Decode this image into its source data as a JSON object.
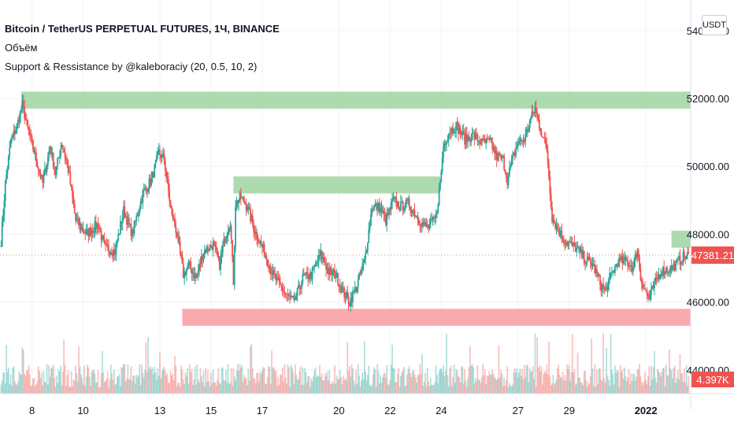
{
  "header": {
    "title": "Bitcoin / TetherUS PERPETUAL FUTURES, 1Ч, BINANCE",
    "indicator_volume": "Объём",
    "indicator_sr": "Support & Ressistance by @kaleboraciy (20, 0.5, 10, 2)"
  },
  "currency_button": "USDT",
  "colors": {
    "up": "#26a69a",
    "down": "#ef5350",
    "resistance_zone": "#a5d6a7",
    "support_zone": "#faa1a4",
    "price_label": "#ef5350",
    "grid": "#f0f3fa",
    "text": "#131722"
  },
  "chart_data": {
    "type": "candlestick",
    "title": "Bitcoin / TetherUS PERPETUAL FUTURES, 1Ч, BINANCE",
    "y_axis": {
      "ticks": [
        54000,
        52000,
        50000,
        48000,
        46000,
        44000
      ],
      "tick_labels": [
        "54000.00",
        "52000.00",
        "50000.00",
        "48000.00",
        "46000.00",
        "44000.00"
      ],
      "range": [
        43300,
        54900
      ]
    },
    "x_axis": {
      "tick_labels": [
        "8",
        "10",
        "13",
        "15",
        "17",
        "20",
        "22",
        "24",
        "27",
        "29",
        "2022"
      ],
      "tick_dates": [
        "2021-12-08",
        "2021-12-10",
        "2021-12-13",
        "2021-12-15",
        "2021-12-17",
        "2021-12-20",
        "2021-12-22",
        "2021-12-24",
        "2021-12-27",
        "2021-12-29",
        "2022-01-01"
      ],
      "range": [
        "2021-12-06T18:00",
        "2022-01-02T18:00"
      ]
    },
    "price_path": [
      [
        "2021-12-06T19:00",
        47800
      ],
      [
        "2021-12-06T23:00",
        49500
      ],
      [
        "2021-12-07T04:00",
        50700
      ],
      [
        "2021-12-07T10:00",
        51200
      ],
      [
        "2021-12-07T15:00",
        51800
      ],
      [
        "2021-12-07T20:00",
        51100
      ],
      [
        "2021-12-08T03:00",
        50300
      ],
      [
        "2021-12-08T10:00",
        49500
      ],
      [
        "2021-12-08T17:00",
        50600
      ],
      [
        "2021-12-08T22:00",
        49800
      ],
      [
        "2021-12-09T04:00",
        50700
      ],
      [
        "2021-12-09T10:00",
        49900
      ],
      [
        "2021-12-09T17:00",
        48400
      ],
      [
        "2021-12-10T03:00",
        48000
      ],
      [
        "2021-12-10T14:00",
        48300
      ],
      [
        "2021-12-10T20:00",
        47600
      ],
      [
        "2021-12-11T06:00",
        47500
      ],
      [
        "2021-12-11T14:00",
        48700
      ],
      [
        "2021-12-11T22:00",
        48000
      ],
      [
        "2021-12-12T08:00",
        49200
      ],
      [
        "2021-12-12T16:00",
        49600
      ],
      [
        "2021-12-12T23:00",
        50400
      ],
      [
        "2021-12-13T04:00",
        50200
      ],
      [
        "2021-12-13T10:00",
        48800
      ],
      [
        "2021-12-13T16:00",
        48000
      ],
      [
        "2021-12-13T22:00",
        46800
      ],
      [
        "2021-12-14T03:00",
        47100
      ],
      [
        "2021-12-14T10:00",
        46700
      ],
      [
        "2021-12-14T17:00",
        47500
      ],
      [
        "2021-12-15T02:00",
        47700
      ],
      [
        "2021-12-15T08:00",
        47100
      ],
      [
        "2021-12-15T13:00",
        47900
      ],
      [
        "2021-12-15T18:00",
        48400
      ],
      [
        "2021-12-15T21:00",
        46600
      ],
      [
        "2021-12-15T23:00",
        48900
      ],
      [
        "2021-12-16T04:00",
        49100
      ],
      [
        "2021-12-16T10:00",
        48800
      ],
      [
        "2021-12-16T17:00",
        48100
      ],
      [
        "2021-12-17T03:00",
        47400
      ],
      [
        "2021-12-17T10:00",
        46800
      ],
      [
        "2021-12-17T16:00",
        46500
      ],
      [
        "2021-12-17T23:00",
        46200
      ],
      [
        "2021-12-18T06:00",
        46000
      ],
      [
        "2021-12-18T14:00",
        46700
      ],
      [
        "2021-12-18T22:00",
        46800
      ],
      [
        "2021-12-19T07:00",
        47400
      ],
      [
        "2021-12-19T14:00",
        46900
      ],
      [
        "2021-12-19T21:00",
        46800
      ],
      [
        "2021-12-20T04:00",
        46300
      ],
      [
        "2021-12-20T10:00",
        46000
      ],
      [
        "2021-12-20T17:00",
        46500
      ],
      [
        "2021-12-21T00:00",
        47200
      ],
      [
        "2021-12-21T07:00",
        48800
      ],
      [
        "2021-12-21T14:00",
        48800
      ],
      [
        "2021-12-21T20:00",
        48400
      ],
      [
        "2021-12-22T03:00",
        49000
      ],
      [
        "2021-12-22T10:00",
        48800
      ],
      [
        "2021-12-22T17:00",
        48900
      ],
      [
        "2021-12-23T00:00",
        48600
      ],
      [
        "2021-12-23T06:00",
        48300
      ],
      [
        "2021-12-23T12:00",
        48200
      ],
      [
        "2021-12-23T19:00",
        48500
      ],
      [
        "2021-12-23T23:00",
        49500
      ],
      [
        "2021-12-24T02:00",
        50600
      ],
      [
        "2021-12-24T07:00",
        51000
      ],
      [
        "2021-12-24T14:00",
        51200
      ],
      [
        "2021-12-24T22:00",
        50800
      ],
      [
        "2021-12-25T06:00",
        50900
      ],
      [
        "2021-12-25T14:00",
        50700
      ],
      [
        "2021-12-25T22:00",
        50700
      ],
      [
        "2021-12-26T04:00",
        50300
      ],
      [
        "2021-12-26T10:00",
        50200
      ],
      [
        "2021-12-26T14:00",
        49600
      ],
      [
        "2021-12-26T18:00",
        50100
      ],
      [
        "2021-12-27T00:00",
        50700
      ],
      [
        "2021-12-27T06:00",
        50800
      ],
      [
        "2021-12-27T12:00",
        51400
      ],
      [
        "2021-12-27T16:00",
        51700
      ],
      [
        "2021-12-27T22:00",
        51000
      ],
      [
        "2021-12-28T03:00",
        50500
      ],
      [
        "2021-12-28T08:00",
        48500
      ],
      [
        "2021-12-28T14:00",
        48100
      ],
      [
        "2021-12-28T20:00",
        47800
      ],
      [
        "2021-12-29T06:00",
        47600
      ],
      [
        "2021-12-29T14:00",
        47300
      ],
      [
        "2021-12-29T22:00",
        47100
      ],
      [
        "2021-12-30T06:00",
        46500
      ],
      [
        "2021-12-30T10:00",
        46300
      ],
      [
        "2021-12-30T14:00",
        46700
      ],
      [
        "2021-12-30T22:00",
        47200
      ],
      [
        "2021-12-31T06:00",
        47200
      ],
      [
        "2021-12-31T12:00",
        47000
      ],
      [
        "2021-12-31T16:00",
        47600
      ],
      [
        "2021-12-31T19:00",
        46700
      ],
      [
        "2022-01-01T00:00",
        46300
      ],
      [
        "2022-01-01T03:00",
        46100
      ],
      [
        "2022-01-01T08:00",
        46500
      ],
      [
        "2022-01-01T14:00",
        46900
      ],
      [
        "2022-01-02T00:00",
        47000
      ],
      [
        "2022-01-02T10:00",
        47300
      ],
      [
        "2022-01-02T16:00",
        47381
      ]
    ],
    "zones": [
      {
        "type": "resistance",
        "from": "2021-12-07T14:00",
        "to": "2022-01-02T18:00",
        "low": 51700,
        "high": 52200
      },
      {
        "type": "resistance",
        "from": "2021-12-15T21:00",
        "to": "2021-12-23T23:00",
        "low": 49200,
        "high": 49700
      },
      {
        "type": "resistance",
        "from": "2022-01-02T00:00",
        "to": "2022-01-02T18:00",
        "low": 47600,
        "high": 48100
      },
      {
        "type": "support",
        "from": "2021-12-13T21:00",
        "to": "2022-01-02T18:00",
        "low": 45300,
        "high": 45800
      }
    ],
    "current_price": 47381.21,
    "current_price_label": "47381.21",
    "current_volume_label": "4.397K"
  }
}
